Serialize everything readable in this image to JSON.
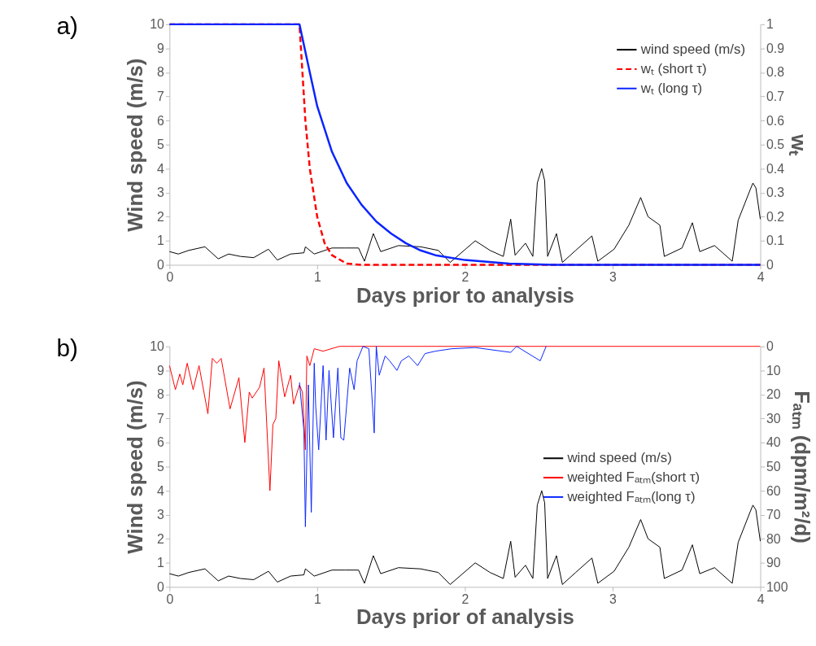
{
  "chart_data": [
    {
      "type": "line",
      "annotations": [
        "a)"
      ],
      "xlabel": "Days prior to analysis",
      "ylabel": "Wind speed (m/s)",
      "y2label": "wₜ",
      "xlim": [
        0,
        4
      ],
      "xticks": [
        0,
        1,
        2,
        3,
        4
      ],
      "ylim": [
        0,
        10
      ],
      "yticks": [
        0,
        1,
        2,
        3,
        4,
        5,
        6,
        7,
        8,
        9,
        10
      ],
      "y2lim": [
        0,
        1
      ],
      "y2ticks": [
        0,
        0.1,
        0.2,
        0.3,
        0.4,
        0.5,
        0.6,
        0.7,
        0.8,
        0.9,
        1
      ],
      "grid": false,
      "legend": "top right",
      "series": [
        {
          "name": "wind speed (m/s)",
          "color": "#000000",
          "line_style": "solid",
          "x": [
            0,
            0.06,
            0.13,
            0.24,
            0.33,
            0.4,
            0.48,
            0.57,
            0.67,
            0.73,
            0.82,
            0.91,
            0.92,
            0.98,
            1.1,
            1.19,
            1.28,
            1.32,
            1.38,
            1.43,
            1.55,
            1.7,
            1.82,
            1.9,
            2.07,
            2.17,
            2.26,
            2.31,
            2.34,
            2.41,
            2.46,
            2.49,
            2.52,
            2.54,
            2.56,
            2.62,
            2.66,
            2.75,
            2.86,
            2.9,
            3.01,
            3.11,
            3.19,
            3.24,
            3.32,
            3.35,
            3.47,
            3.54,
            3.59,
            3.69,
            3.81,
            3.85,
            3.93,
            3.95,
            3.97,
            4.0
          ],
          "values": [
            0.55,
            0.45,
            0.6,
            0.75,
            0.25,
            0.45,
            0.35,
            0.3,
            0.65,
            0.2,
            0.45,
            0.5,
            0.75,
            0.45,
            0.7,
            0.7,
            0.7,
            0.15,
            1.3,
            0.55,
            0.8,
            0.75,
            0.6,
            0.1,
            1.0,
            0.6,
            0.35,
            1.9,
            0.4,
            0.9,
            0.35,
            3.4,
            4.0,
            3.5,
            0.35,
            1.3,
            0.1,
            0.6,
            1.2,
            0.15,
            0.65,
            1.65,
            2.8,
            2.0,
            1.65,
            0.35,
            0.7,
            1.75,
            0.55,
            0.8,
            0.15,
            1.85,
            3.1,
            3.4,
            3.2,
            1.9
          ]
        },
        {
          "name": "wₜ (short τ)",
          "color": "#ff0000",
          "line_style": "dashed",
          "axis": "y2",
          "x": [
            0,
            0.88,
            0.9,
            0.92,
            0.95,
            1.0,
            1.05,
            1.1,
            1.2,
            1.3,
            4
          ],
          "values": [
            1,
            1,
            0.8,
            0.6,
            0.4,
            0.2,
            0.09,
            0.04,
            0.005,
            0,
            0
          ]
        },
        {
          "name": "wₜ (long τ)",
          "color": "#0a24ff",
          "line_style": "solid",
          "axis": "y2",
          "x": [
            0,
            0.88,
            0.95,
            1.0,
            1.1,
            1.2,
            1.3,
            1.4,
            1.5,
            1.6,
            1.7,
            1.8,
            2.0,
            2.3,
            2.6,
            4
          ],
          "values": [
            1,
            1,
            0.8,
            0.66,
            0.47,
            0.34,
            0.25,
            0.18,
            0.13,
            0.09,
            0.06,
            0.04,
            0.02,
            0.005,
            0,
            0
          ]
        }
      ]
    },
    {
      "type": "line",
      "annotations": [
        "b)"
      ],
      "xlabel": "Days prior of analysis",
      "ylabel": "Wind speed (m/s)",
      "y2label": "Fₐₜₘ (dpm/m²/d)",
      "xlim": [
        0,
        4
      ],
      "xticks": [
        0,
        1,
        2,
        3,
        4
      ],
      "ylim": [
        0,
        10
      ],
      "yticks": [
        0,
        1,
        2,
        3,
        4,
        5,
        6,
        7,
        8,
        9,
        10
      ],
      "y2lim": [
        100,
        0
      ],
      "y2ticks": [
        0,
        10,
        20,
        30,
        40,
        50,
        60,
        70,
        80,
        90,
        100
      ],
      "grid": false,
      "legend": "right",
      "series": [
        {
          "name": "wind speed (m/s)",
          "color": "#000000",
          "line_style": "solid",
          "x": [
            0,
            0.06,
            0.13,
            0.24,
            0.33,
            0.4,
            0.48,
            0.57,
            0.67,
            0.73,
            0.82,
            0.91,
            0.92,
            0.98,
            1.1,
            1.19,
            1.28,
            1.32,
            1.38,
            1.43,
            1.55,
            1.7,
            1.82,
            1.9,
            2.07,
            2.17,
            2.26,
            2.31,
            2.34,
            2.41,
            2.46,
            2.49,
            2.52,
            2.54,
            2.56,
            2.62,
            2.66,
            2.75,
            2.86,
            2.9,
            3.01,
            3.11,
            3.19,
            3.24,
            3.32,
            3.35,
            3.47,
            3.54,
            3.59,
            3.69,
            3.81,
            3.85,
            3.93,
            3.95,
            3.97,
            4.0
          ],
          "values": [
            0.55,
            0.45,
            0.6,
            0.75,
            0.25,
            0.45,
            0.35,
            0.3,
            0.65,
            0.2,
            0.45,
            0.5,
            0.75,
            0.45,
            0.7,
            0.7,
            0.7,
            0.15,
            1.3,
            0.55,
            0.8,
            0.75,
            0.6,
            0.1,
            1.0,
            0.6,
            0.35,
            1.9,
            0.4,
            0.9,
            0.35,
            3.4,
            4.0,
            3.5,
            0.35,
            1.3,
            0.1,
            0.6,
            1.2,
            0.15,
            0.65,
            1.65,
            2.8,
            2.0,
            1.65,
            0.35,
            0.7,
            1.75,
            0.55,
            0.8,
            0.15,
            1.85,
            3.1,
            3.4,
            3.2,
            1.9
          ]
        },
        {
          "name": "weighted Fₐₜₘ(short τ)",
          "color": "#ff0000",
          "line_style": "solid",
          "axis": "y2",
          "x": [
            0,
            0.04,
            0.07,
            0.09,
            0.12,
            0.16,
            0.2,
            0.26,
            0.29,
            0.32,
            0.35,
            0.41,
            0.47,
            0.51,
            0.54,
            0.56,
            0.61,
            0.64,
            0.68,
            0.7,
            0.72,
            0.74,
            0.78,
            0.82,
            0.84,
            0.88,
            0.9,
            0.92,
            0.93,
            0.95,
            0.98,
            1.04,
            1.15,
            4
          ],
          "values": [
            8,
            18,
            11.5,
            16,
            7,
            18,
            8,
            28,
            5,
            7,
            5,
            26,
            13,
            40,
            19,
            21.5,
            17,
            9,
            60,
            32.5,
            30,
            6,
            21,
            12,
            24,
            16,
            19,
            43,
            4,
            8,
            1,
            2,
            0,
            0
          ]
        },
        {
          "name": "weighted Fₐₜₘ(long τ)",
          "color": "#0a24ff",
          "line_style": "solid",
          "axis": "y2",
          "x": [
            0.88,
            0.91,
            0.92,
            0.94,
            0.96,
            0.98,
            0.99,
            1.01,
            1.04,
            1.06,
            1.08,
            1.11,
            1.14,
            1.16,
            1.18,
            1.22,
            1.25,
            1.27,
            1.31,
            1.35,
            1.386,
            1.4,
            1.42,
            1.46,
            1.49,
            1.54,
            1.57,
            1.62,
            1.68,
            1.73,
            1.8,
            1.91,
            2.07,
            2.31,
            2.35,
            2.51,
            2.55
          ],
          "values": [
            15,
            35,
            75,
            16,
            69,
            7,
            25,
            43,
            8,
            39,
            10,
            38,
            9,
            38,
            39,
            9,
            18,
            6,
            0,
            1,
            36,
            0,
            12,
            4,
            6,
            10,
            6,
            4,
            8,
            3,
            2,
            1,
            0.5,
            2.5,
            0,
            6,
            0
          ]
        }
      ]
    }
  ]
}
